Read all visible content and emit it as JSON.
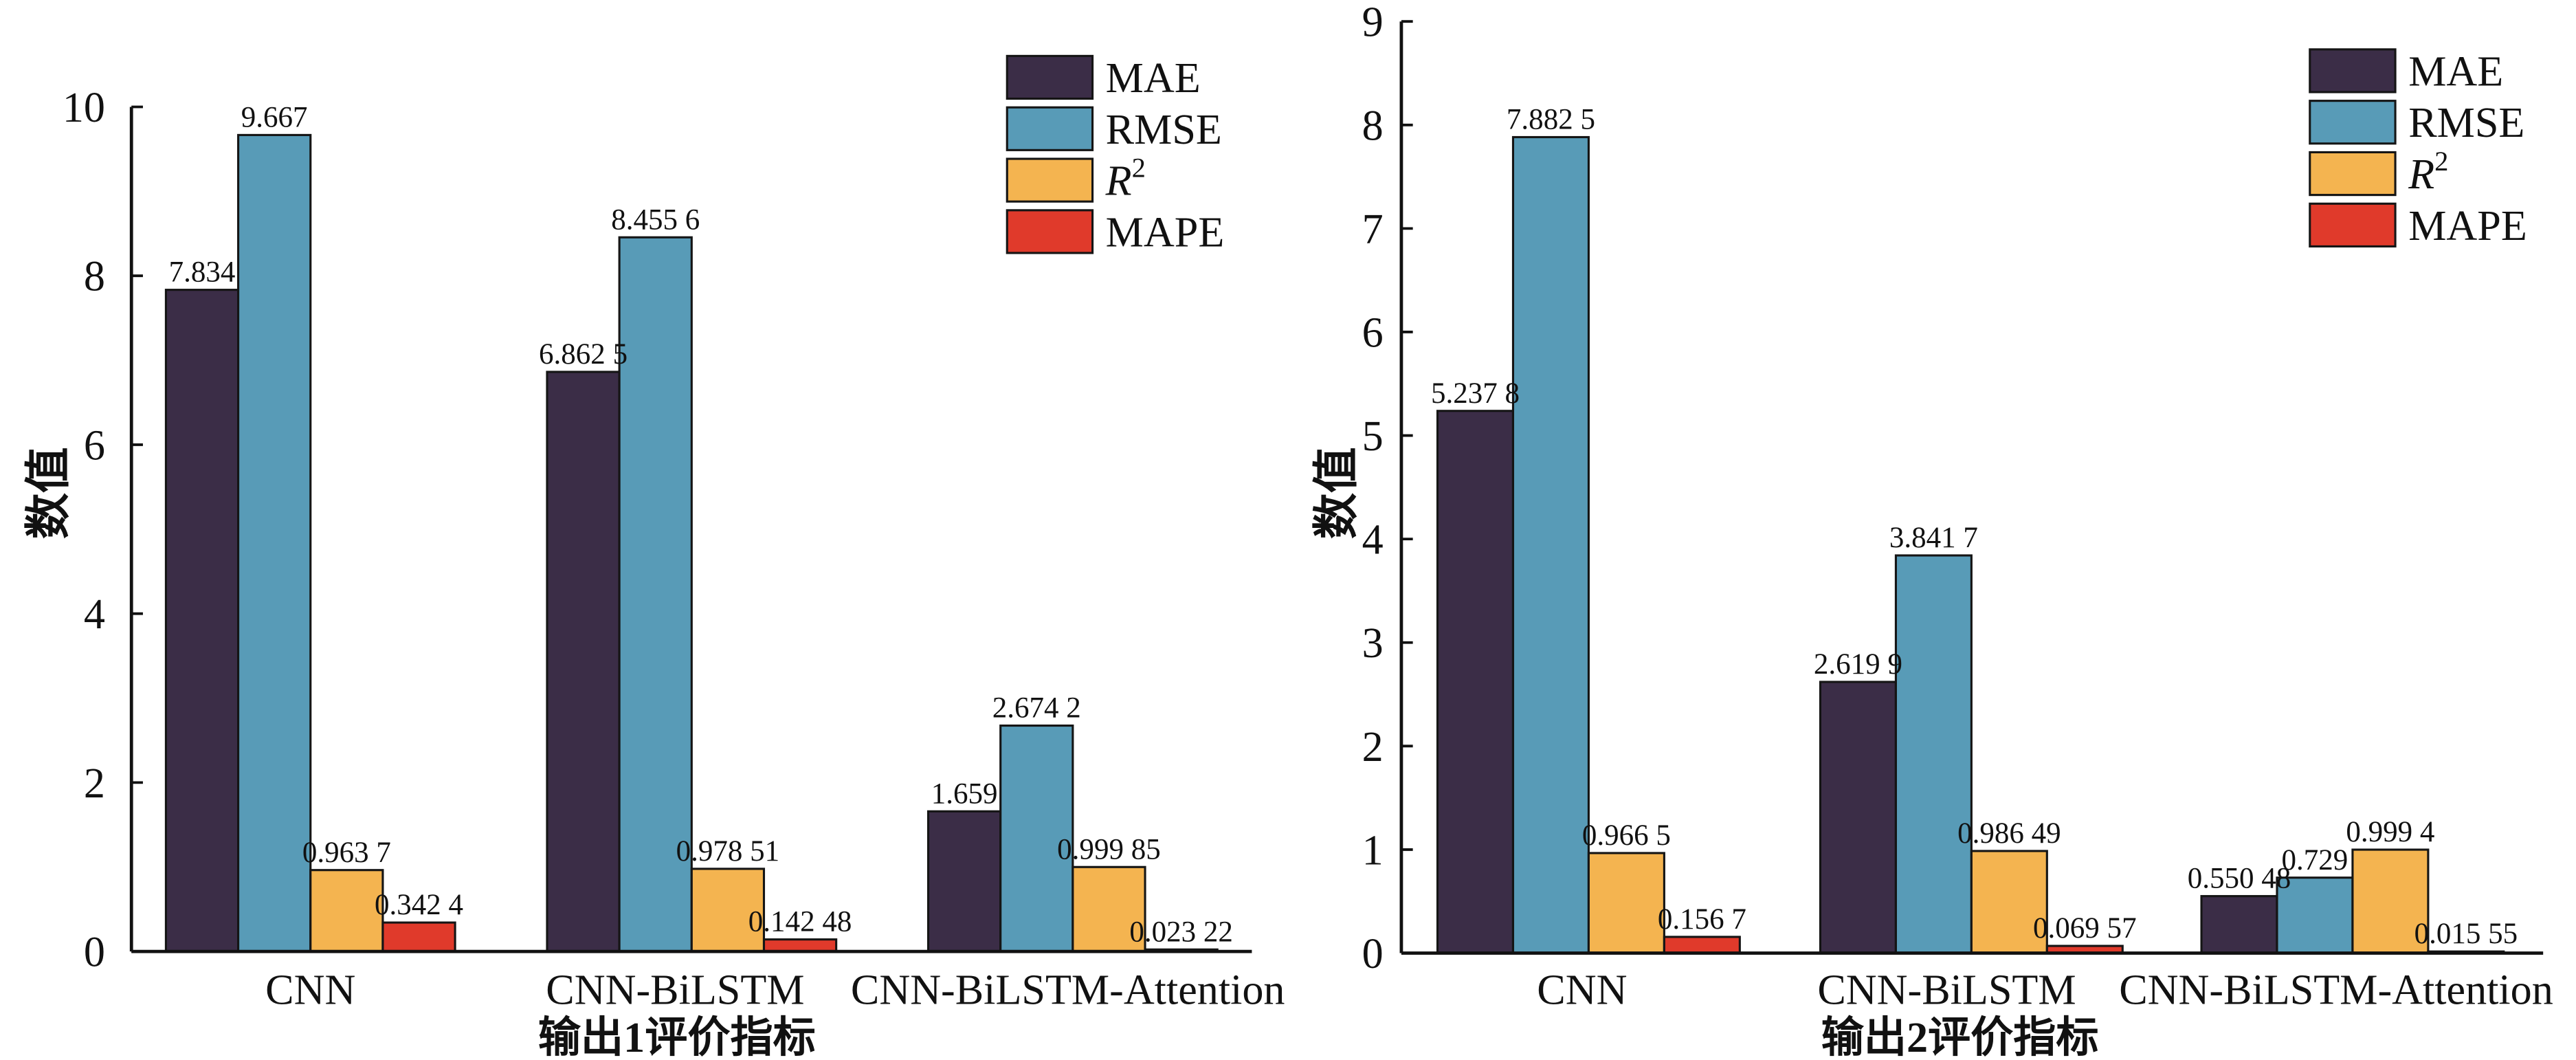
{
  "chart_data": [
    {
      "type": "bar",
      "xlabel": "输出1评价指标",
      "ylabel": "数值",
      "ylim": [
        0,
        10
      ],
      "yticks": [
        0,
        2,
        4,
        6,
        8,
        10
      ],
      "grid": false,
      "legend_position": "top-right",
      "categories": [
        "CNN",
        "CNN-BiLSTM",
        "CNN-BiLSTM-Attention"
      ],
      "series": [
        {
          "name": "MAE",
          "color": "#3b2d47",
          "values": [
            7.834,
            6.8625,
            1.659
          ],
          "labels": [
            "7.834",
            "6.862 5",
            "1.659"
          ]
        },
        {
          "name": "RMSE",
          "color": "#589bb7",
          "values": [
            9.667,
            8.4556,
            2.6742
          ],
          "labels": [
            "9.667",
            "8.455 6",
            "2.674 2"
          ]
        },
        {
          "name": "R",
          "name_sup": "2",
          "color": "#f4b450",
          "values": [
            0.9637,
            0.97851,
            0.99985
          ],
          "labels": [
            "0.963 7",
            "0.978 51",
            "0.999 85"
          ]
        },
        {
          "name": "MAPE",
          "color": "#e03a2b",
          "values": [
            0.3424,
            0.14248,
            0.02322
          ],
          "labels": [
            "0.342 4",
            "0.142 48",
            "0.023 22"
          ]
        }
      ]
    },
    {
      "type": "bar",
      "xlabel": "输出2评价指标",
      "ylabel": "数值",
      "ylim": [
        0,
        9
      ],
      "yticks": [
        0,
        1,
        2,
        3,
        4,
        5,
        6,
        7,
        8,
        9
      ],
      "grid": false,
      "legend_position": "top-right",
      "categories": [
        "CNN",
        "CNN-BiLSTM",
        "CNN-BiLSTM-Attention"
      ],
      "series": [
        {
          "name": "MAE",
          "color": "#3b2d47",
          "values": [
            5.2378,
            2.6199,
            0.55048
          ],
          "labels": [
            "5.237 8",
            "2.619 9",
            "0.550 48"
          ]
        },
        {
          "name": "RMSE",
          "color": "#589bb7",
          "values": [
            7.8825,
            3.8417,
            0.729
          ],
          "labels": [
            "7.882 5",
            "3.841 7",
            "0.729"
          ]
        },
        {
          "name": "R",
          "name_sup": "2",
          "color": "#f4b450",
          "values": [
            0.9665,
            0.98649,
            0.9994
          ],
          "labels": [
            "0.966 5",
            "0.986 49",
            "0.999 4"
          ]
        },
        {
          "name": "MAPE",
          "color": "#e03a2b",
          "values": [
            0.1567,
            0.06957,
            0.01555
          ],
          "labels": [
            "0.156 7",
            "0.069 57",
            "0.015 55"
          ]
        }
      ]
    }
  ]
}
